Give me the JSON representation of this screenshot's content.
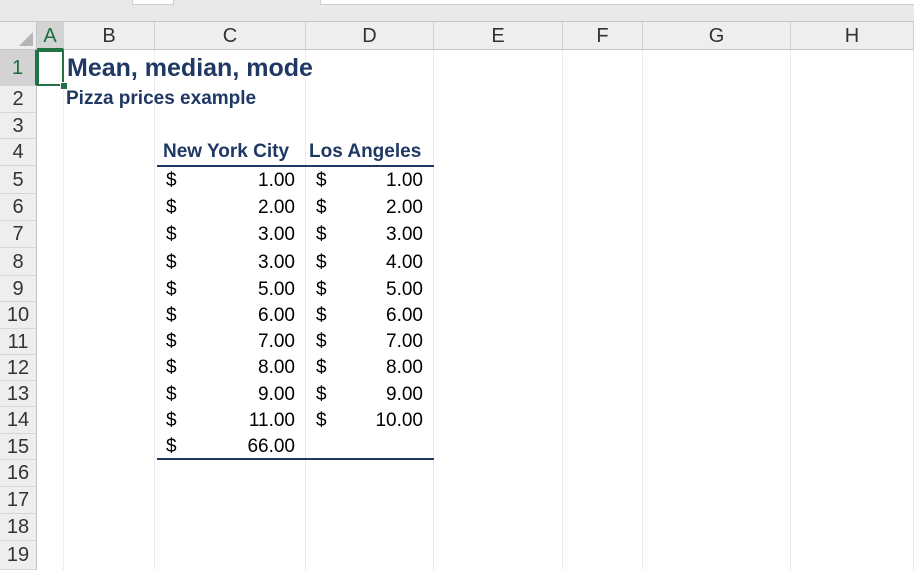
{
  "columns": [
    "A",
    "B",
    "C",
    "D",
    "E",
    "F",
    "G",
    "H"
  ],
  "rows": [
    "1",
    "2",
    "3",
    "4",
    "5",
    "6",
    "7",
    "8",
    "9",
    "10",
    "11",
    "12",
    "13",
    "14",
    "15",
    "16",
    "17",
    "18",
    "19"
  ],
  "selection": {
    "column": "A",
    "row": "1"
  },
  "sheet": {
    "title": "Mean, median, mode",
    "subtitle": "Pizza prices example",
    "headers": {
      "nyc": "New York City",
      "la": "Los Angeles"
    },
    "currency_symbol": "$",
    "nyc_values": [
      "1.00",
      "2.00",
      "3.00",
      "3.00",
      "5.00",
      "6.00",
      "7.00",
      "8.00",
      "9.00",
      "11.00",
      "66.00"
    ],
    "la_values": [
      "1.00",
      "2.00",
      "3.00",
      "4.00",
      "5.00",
      "6.00",
      "7.00",
      "8.00",
      "9.00",
      "10.00"
    ]
  },
  "colors": {
    "heading_text": "#1f3864",
    "selection_green": "#217346"
  }
}
